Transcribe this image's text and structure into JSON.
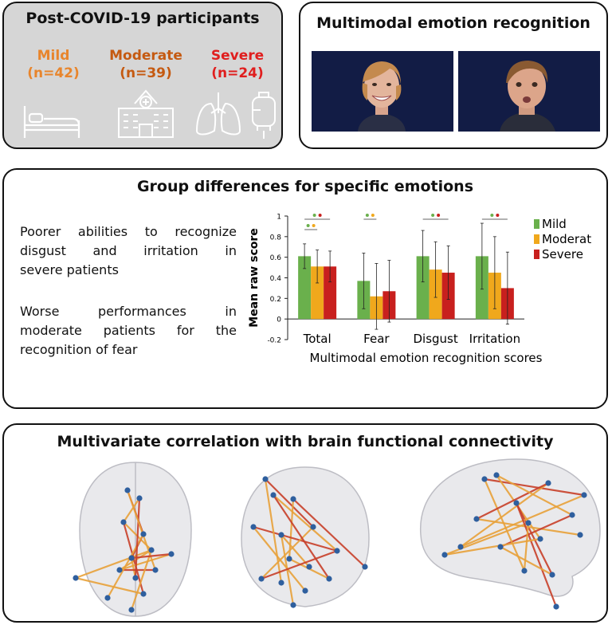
{
  "participants": {
    "title": "Post-COVID-19 participants",
    "groups": [
      {
        "name": "Mild",
        "n": "(n=42)",
        "color": "#e8852c",
        "icon": "hospital-bed-icon"
      },
      {
        "name": "Moderate",
        "n": "(n=39)",
        "color": "#c55a11",
        "icon": "hospital-building-icon"
      },
      {
        "name": "Severe",
        "n": "(n=24)",
        "color": "#e01e1e",
        "icon": "lungs-and-iv-bag-icon"
      }
    ]
  },
  "recognition": {
    "title": "Multimodal emotion recognition"
  },
  "differences": {
    "title": "Group differences for specific emotions",
    "finding1": [
      "Poorer abilities to recognize",
      "disgust and irritation in",
      "severe patients"
    ],
    "finding2": [
      "Worse performances in",
      "moderate patients for the",
      "recognition of fear"
    ]
  },
  "chart_data": {
    "type": "bar",
    "categories": [
      "Total",
      "Fear",
      "Disgust",
      "Irritation"
    ],
    "series": [
      {
        "name": "Mild",
        "color": "#6ab04c",
        "values": [
          0.61,
          0.37,
          0.61,
          0.61
        ],
        "errors": [
          0.12,
          0.27,
          0.25,
          0.32
        ]
      },
      {
        "name": "Moderate",
        "color": "#f0a81c",
        "values": [
          0.51,
          0.22,
          0.48,
          0.45
        ],
        "errors": [
          0.16,
          0.32,
          0.27,
          0.35
        ]
      },
      {
        "name": "Severe",
        "color": "#c8201e",
        "values": [
          0.51,
          0.27,
          0.45,
          0.3
        ],
        "errors": [
          0.15,
          0.3,
          0.26,
          0.35
        ]
      }
    ],
    "ylabel": "Mean raw score",
    "xlabel": "Multimodal emotion recognition scores",
    "ylim": [
      -0.2,
      1
    ],
    "yticks": [
      "-0.2",
      "0",
      "0.2",
      "0.4",
      "0.6",
      "0.8",
      "1"
    ],
    "legend_position": "top-right",
    "significance": [
      {
        "category": "Total",
        "pairs": [
          "Mild-Severe",
          "Mild-Moderate"
        ]
      },
      {
        "category": "Fear",
        "pairs": [
          "Mild-Moderate"
        ]
      },
      {
        "category": "Disgust",
        "pairs": [
          "Mild-Severe"
        ]
      },
      {
        "category": "Irritation",
        "pairs": [
          "Mild-Severe"
        ]
      }
    ]
  },
  "connectivity": {
    "title": "Multivariate correlation with brain functional connectivity",
    "views": [
      "axial",
      "coronal",
      "sagittal"
    ],
    "edge_colors": [
      "#e8a23a",
      "#c8402a"
    ],
    "node_color": "#2f5f9e"
  }
}
